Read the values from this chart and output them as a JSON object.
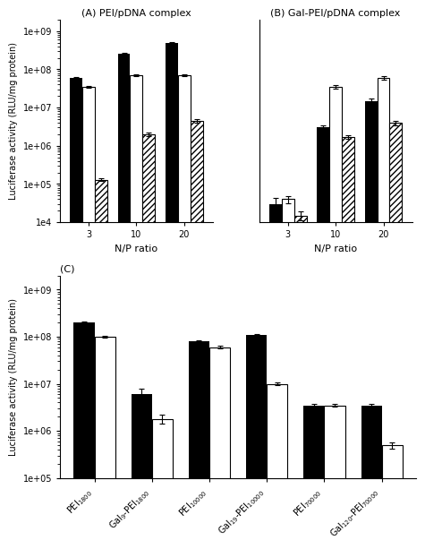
{
  "panel_A": {
    "title": "(A) PEI/pDNA complex",
    "xlabel": "N/P ratio",
    "ylabel": "Luciferase activity (RLU/mg protein)",
    "np_ratios": [
      3,
      10,
      20
    ],
    "black_vals": [
      60000000.0,
      250000000.0,
      500000000.0
    ],
    "black_err": [
      4000000.0,
      15000000.0,
      20000000.0
    ],
    "white_vals": [
      35000000.0,
      70000000.0,
      70000000.0
    ],
    "white_err": [
      2000000.0,
      4000000.0,
      4000000.0
    ],
    "hatch_vals": [
      130000.0,
      2000000.0,
      4500000.0
    ],
    "hatch_err": [
      10000.0,
      200000.0,
      500000.0
    ],
    "ylim": [
      10000.0,
      2000000000.0
    ]
  },
  "panel_B": {
    "title": "(B) Gal-PEI/pDNA complex",
    "xlabel": "N/P ratio",
    "ylabel": "Luciferase activity (RLU/mg protein)",
    "np_ratios": [
      3,
      10,
      20
    ],
    "black_vals": [
      30000.0,
      3000000.0,
      15000000.0
    ],
    "black_err": [
      12000.0,
      400000.0,
      2000000.0
    ],
    "white_vals": [
      40000.0,
      35000000.0,
      60000000.0
    ],
    "white_err": [
      8000.0,
      3000000.0,
      5000000.0
    ],
    "hatch_vals": [
      15000.0,
      1700000.0,
      4000000.0
    ],
    "hatch_err": [
      4000.0,
      200000.0,
      500000.0
    ],
    "ylim": [
      10000.0,
      2000000000.0
    ]
  },
  "panel_C": {
    "title": "(C)",
    "ylabel": "Luciferase activity (RLU/mg protein)",
    "categories": [
      "PEI$_{1800}$",
      "Gal$_9$-PEI$_{1800}$",
      "PEI$_{10000}$",
      "Gal$_{19}$-PEI$_{10000}$",
      "PEI$_{70000}$",
      "Gal$_{120}$-PEI$_{70000}$"
    ],
    "black_vals": [
      200000000.0,
      6000000.0,
      80000000.0,
      110000000.0,
      3500000.0,
      3500000.0
    ],
    "black_err": [
      8000000.0,
      2000000.0,
      4000000.0,
      4000000.0,
      200000.0,
      200000.0
    ],
    "white_vals": [
      100000000.0,
      1800000.0,
      60000000.0,
      10000000.0,
      3500000.0,
      500000.0
    ],
    "white_err": [
      4000000.0,
      400000.0,
      4000000.0,
      800000.0,
      200000.0,
      80000.0
    ],
    "ylim": [
      100000.0,
      2000000000.0
    ]
  }
}
